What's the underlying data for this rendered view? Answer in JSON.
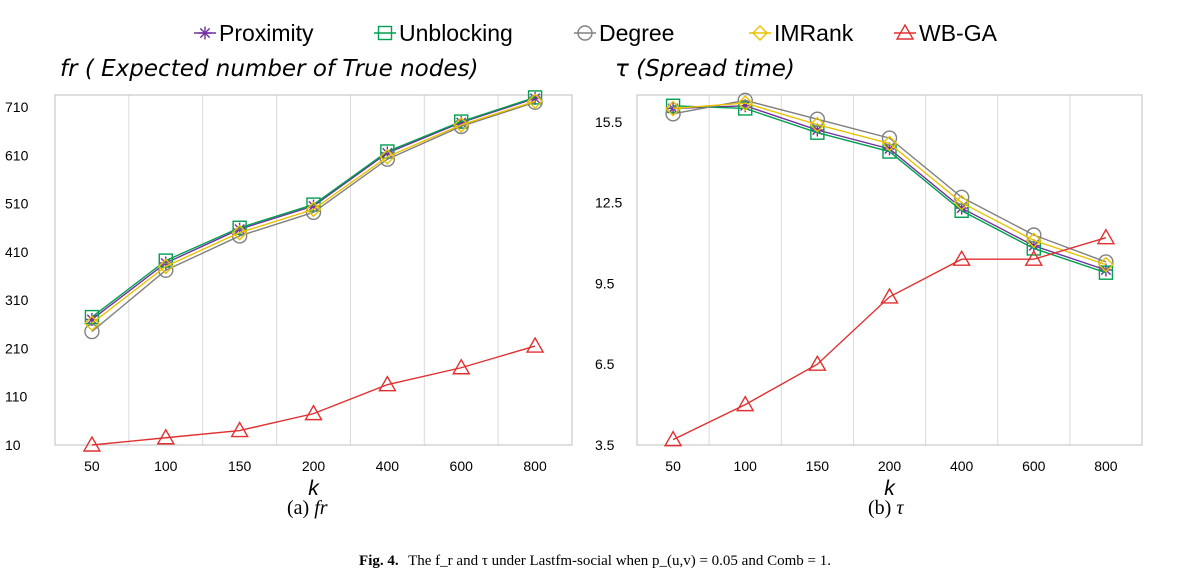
{
  "legend": {
    "items": [
      {
        "name": "Proximity",
        "color": "#7030A0",
        "marker": "star"
      },
      {
        "name": "Unblocking",
        "color": "#00A050",
        "marker": "square"
      },
      {
        "name": "Degree",
        "color": "#808080",
        "marker": "circle"
      },
      {
        "name": "IMRank",
        "color": "#E8C200",
        "marker": "diamond"
      },
      {
        "name": "WB-GA",
        "color": "#E03030",
        "marker": "triangle"
      }
    ]
  },
  "panel_a": {
    "title": "fr ( Expected number of True nodes)",
    "sub_prefix": "(a)",
    "sub_symbol": "fr"
  },
  "panel_b": {
    "title": "τ (Spread time)",
    "sub_prefix": "(b)",
    "sub_symbol": "τ"
  },
  "caption": {
    "fig": "Fig. 4.",
    "text": "The f_r and τ under Lastfm-social when p_(u,v) = 0.05 and Comb = 1."
  },
  "chart_data": [
    {
      "type": "line",
      "title": "fr ( Expected number of True nodes)",
      "xlabel": "k",
      "ylabel": "",
      "categories": [
        "50",
        "100",
        "150",
        "200",
        "400",
        "600",
        "800"
      ],
      "yticks": [
        "10",
        "110",
        "210",
        "310",
        "410",
        "510",
        "610",
        "710"
      ],
      "ylim": [
        10,
        735
      ],
      "grid": "vertical",
      "series": [
        {
          "name": "Proximity",
          "values": [
            270,
            387,
            457,
            505,
            615,
            678,
            728
          ]
        },
        {
          "name": "Unblocking",
          "values": [
            275,
            392,
            460,
            508,
            618,
            680,
            730
          ]
        },
        {
          "name": "Degree",
          "values": [
            245,
            372,
            443,
            492,
            602,
            670,
            720
          ]
        },
        {
          "name": "IMRank",
          "values": [
            262,
            380,
            450,
            498,
            607,
            673,
            722
          ]
        },
        {
          "name": "WB-GA",
          "values": [
            10,
            25,
            40,
            75,
            135,
            170,
            215
          ]
        }
      ]
    },
    {
      "type": "line",
      "title": "τ (Spread time)",
      "xlabel": "k",
      "ylabel": "",
      "categories": [
        "50",
        "100",
        "150",
        "200",
        "400",
        "600",
        "800"
      ],
      "yticks": [
        "3.5",
        "6.5",
        "9.5",
        "12.5",
        "15.5"
      ],
      "ylim": [
        3.5,
        16.5
      ],
      "grid": "vertical",
      "series": [
        {
          "name": "Proximity",
          "values": [
            16.0,
            16.1,
            15.2,
            14.5,
            12.3,
            10.9,
            10.0
          ]
        },
        {
          "name": "Unblocking",
          "values": [
            16.1,
            16.0,
            15.1,
            14.4,
            12.2,
            10.8,
            9.9
          ]
        },
        {
          "name": "Degree",
          "values": [
            15.8,
            16.3,
            15.6,
            14.9,
            12.7,
            11.3,
            10.3
          ]
        },
        {
          "name": "IMRank",
          "values": [
            16.0,
            16.2,
            15.4,
            14.7,
            12.5,
            11.1,
            10.2
          ]
        },
        {
          "name": "WB-GA",
          "values": [
            3.7,
            5.0,
            6.5,
            9.0,
            10.4,
            10.4,
            11.2
          ]
        }
      ]
    }
  ]
}
